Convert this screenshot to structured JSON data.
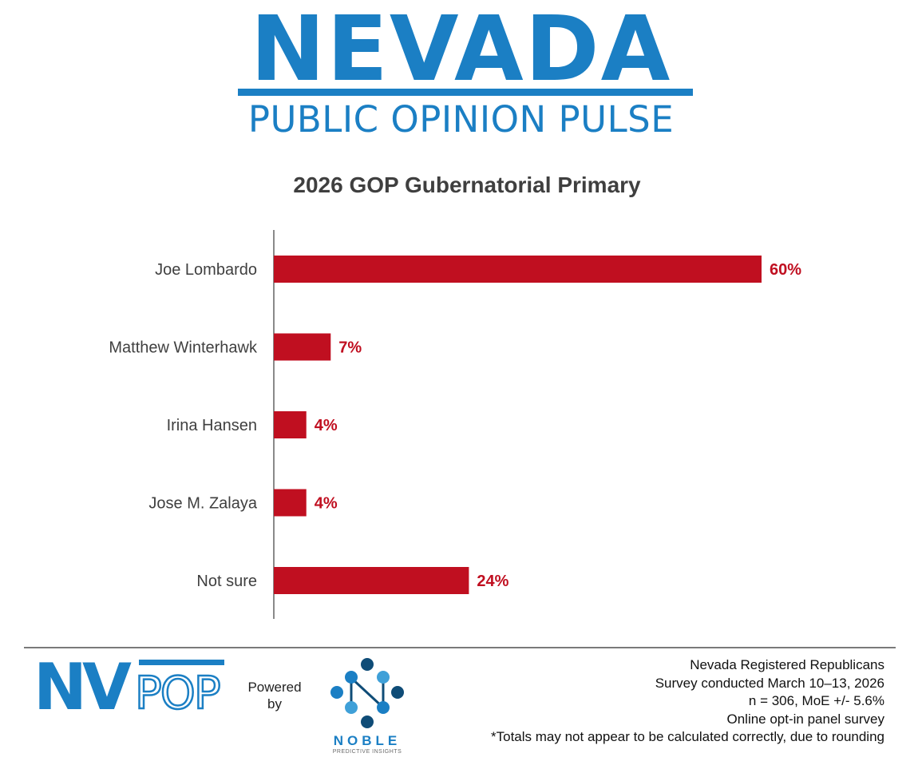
{
  "header": {
    "brand_title": "NEVADA",
    "brand_subtitle": "PUBLIC OPINION PULSE"
  },
  "colors": {
    "brand_blue": "#1b7fc4",
    "bar_red": "#c00f20",
    "text_gray": "#3f3f3f"
  },
  "chart_data": {
    "type": "bar",
    "orientation": "horizontal",
    "title": "2026 GOP Gubernatorial Primary",
    "categories": [
      "Joe Lombardo",
      "Matthew Winterhawk",
      "Irina Hansen",
      "Jose M. Zalaya",
      "Not sure"
    ],
    "values": [
      60,
      7,
      4,
      4,
      24
    ],
    "value_labels": [
      "60%",
      "7%",
      "4%",
      "4%",
      "24%"
    ],
    "unit": "%",
    "xlim": [
      0,
      60
    ],
    "grid": false,
    "legend": "none",
    "bar_color": "#c00f20"
  },
  "footer": {
    "nvpop_logo_text": "NVPOP",
    "powered_by": "Powered by",
    "noble_name": "NOBLE",
    "noble_tagline": "PREDICTIVE INSIGHTS",
    "notes": [
      "Nevada Registered Republicans",
      "Survey conducted March 10–13, 2026",
      "n = 306, MoE +/- 5.6%",
      "Online opt-in panel survey",
      "*Totals may not appear to be calculated correctly, due to rounding"
    ]
  }
}
